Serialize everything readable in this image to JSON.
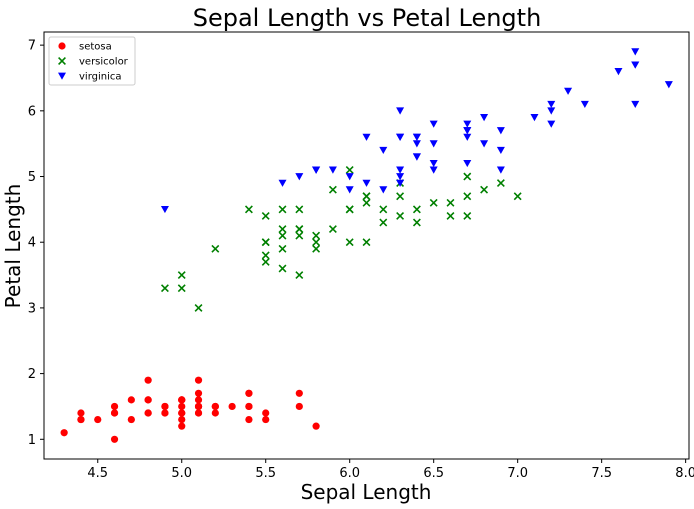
{
  "chart_data": {
    "type": "scatter",
    "title": "Sepal Length vs Petal Length",
    "xlabel": "Sepal Length",
    "ylabel": "Petal Length",
    "xlim": [
      4.18,
      8.02
    ],
    "ylim": [
      0.7,
      7.2
    ],
    "xticks": [
      4.5,
      5.0,
      5.5,
      6.0,
      6.5,
      7.0,
      7.5,
      8.0
    ],
    "xtick_labels": [
      "4.5",
      "5.0",
      "5.5",
      "6.0",
      "6.5",
      "7.0",
      "7.5",
      "8.0"
    ],
    "yticks": [
      1,
      2,
      3,
      4,
      5,
      6,
      7
    ],
    "ytick_labels": [
      "1",
      "2",
      "3",
      "4",
      "5",
      "6",
      "7"
    ],
    "grid": false,
    "legend_position": "top-left",
    "series": [
      {
        "name": "setosa",
        "marker": "circle",
        "color": "#ff0000",
        "points": [
          [
            5.1,
            1.4
          ],
          [
            4.9,
            1.4
          ],
          [
            4.7,
            1.3
          ],
          [
            4.6,
            1.5
          ],
          [
            5.0,
            1.4
          ],
          [
            5.4,
            1.7
          ],
          [
            4.6,
            1.4
          ],
          [
            5.0,
            1.5
          ],
          [
            4.4,
            1.4
          ],
          [
            4.9,
            1.5
          ],
          [
            5.4,
            1.5
          ],
          [
            4.8,
            1.6
          ],
          [
            4.8,
            1.4
          ],
          [
            4.3,
            1.1
          ],
          [
            5.8,
            1.2
          ],
          [
            5.7,
            1.5
          ],
          [
            5.4,
            1.3
          ],
          [
            5.1,
            1.4
          ],
          [
            5.7,
            1.7
          ],
          [
            5.1,
            1.5
          ],
          [
            5.4,
            1.7
          ],
          [
            5.1,
            1.5
          ],
          [
            4.6,
            1.0
          ],
          [
            5.1,
            1.7
          ],
          [
            4.8,
            1.9
          ],
          [
            5.0,
            1.6
          ],
          [
            5.0,
            1.6
          ],
          [
            5.2,
            1.5
          ],
          [
            5.2,
            1.4
          ],
          [
            4.7,
            1.6
          ],
          [
            4.8,
            1.6
          ],
          [
            5.4,
            1.5
          ],
          [
            5.2,
            1.5
          ],
          [
            5.5,
            1.4
          ],
          [
            4.9,
            1.5
          ],
          [
            5.0,
            1.2
          ],
          [
            5.5,
            1.3
          ],
          [
            4.9,
            1.4
          ],
          [
            4.4,
            1.3
          ],
          [
            5.1,
            1.5
          ],
          [
            5.0,
            1.3
          ],
          [
            4.5,
            1.3
          ],
          [
            4.4,
            1.3
          ],
          [
            5.0,
            1.6
          ],
          [
            5.1,
            1.9
          ],
          [
            4.8,
            1.4
          ],
          [
            5.1,
            1.6
          ],
          [
            4.6,
            1.4
          ],
          [
            5.3,
            1.5
          ],
          [
            5.0,
            1.4
          ]
        ]
      },
      {
        "name": "versicolor",
        "marker": "x",
        "color": "#008000",
        "points": [
          [
            7.0,
            4.7
          ],
          [
            6.4,
            4.5
          ],
          [
            6.9,
            4.9
          ],
          [
            5.5,
            4.0
          ],
          [
            6.5,
            4.6
          ],
          [
            5.7,
            4.5
          ],
          [
            6.3,
            4.7
          ],
          [
            4.9,
            3.3
          ],
          [
            6.6,
            4.6
          ],
          [
            5.2,
            3.9
          ],
          [
            5.0,
            3.5
          ],
          [
            5.9,
            4.2
          ],
          [
            6.0,
            4.0
          ],
          [
            6.1,
            4.7
          ],
          [
            5.6,
            3.6
          ],
          [
            6.7,
            4.4
          ],
          [
            5.6,
            4.5
          ],
          [
            5.8,
            4.1
          ],
          [
            6.2,
            4.5
          ],
          [
            5.6,
            3.9
          ],
          [
            5.9,
            4.8
          ],
          [
            6.1,
            4.0
          ],
          [
            6.3,
            4.9
          ],
          [
            6.1,
            4.7
          ],
          [
            6.4,
            4.3
          ],
          [
            6.6,
            4.4
          ],
          [
            6.8,
            4.8
          ],
          [
            6.7,
            5.0
          ],
          [
            6.0,
            4.5
          ],
          [
            5.7,
            3.5
          ],
          [
            5.5,
            3.8
          ],
          [
            5.5,
            3.7
          ],
          [
            5.8,
            3.9
          ],
          [
            6.0,
            5.1
          ],
          [
            5.4,
            4.5
          ],
          [
            6.0,
            4.5
          ],
          [
            6.7,
            4.7
          ],
          [
            6.3,
            4.4
          ],
          [
            5.6,
            4.1
          ],
          [
            5.5,
            4.0
          ],
          [
            5.5,
            4.4
          ],
          [
            6.1,
            4.6
          ],
          [
            5.8,
            4.0
          ],
          [
            5.0,
            3.3
          ],
          [
            5.6,
            4.2
          ],
          [
            5.7,
            4.2
          ],
          [
            5.7,
            4.2
          ],
          [
            6.2,
            4.3
          ],
          [
            5.1,
            3.0
          ],
          [
            5.7,
            4.1
          ]
        ]
      },
      {
        "name": "virginica",
        "marker": "triangle-down",
        "color": "#0000ff",
        "points": [
          [
            6.3,
            6.0
          ],
          [
            5.8,
            5.1
          ],
          [
            7.1,
            5.9
          ],
          [
            6.3,
            5.6
          ],
          [
            6.5,
            5.8
          ],
          [
            7.6,
            6.6
          ],
          [
            4.9,
            4.5
          ],
          [
            7.3,
            6.3
          ],
          [
            6.7,
            5.8
          ],
          [
            7.2,
            6.1
          ],
          [
            6.5,
            5.1
          ],
          [
            6.4,
            5.3
          ],
          [
            6.8,
            5.5
          ],
          [
            5.7,
            5.0
          ],
          [
            5.8,
            5.1
          ],
          [
            6.4,
            5.3
          ],
          [
            6.5,
            5.5
          ],
          [
            7.7,
            6.7
          ],
          [
            7.7,
            6.9
          ],
          [
            6.0,
            5.0
          ],
          [
            6.9,
            5.7
          ],
          [
            5.6,
            4.9
          ],
          [
            7.7,
            6.7
          ],
          [
            6.3,
            4.9
          ],
          [
            6.7,
            5.7
          ],
          [
            7.2,
            6.0
          ],
          [
            6.2,
            4.8
          ],
          [
            6.1,
            4.9
          ],
          [
            6.4,
            5.6
          ],
          [
            7.2,
            5.8
          ],
          [
            7.4,
            6.1
          ],
          [
            7.9,
            6.4
          ],
          [
            6.4,
            5.6
          ],
          [
            6.3,
            5.1
          ],
          [
            6.1,
            5.6
          ],
          [
            7.7,
            6.1
          ],
          [
            6.3,
            5.6
          ],
          [
            6.4,
            5.5
          ],
          [
            6.0,
            4.8
          ],
          [
            6.9,
            5.4
          ],
          [
            6.7,
            5.6
          ],
          [
            6.9,
            5.1
          ],
          [
            5.8,
            5.1
          ],
          [
            6.8,
            5.9
          ],
          [
            6.7,
            5.7
          ],
          [
            6.7,
            5.2
          ],
          [
            6.3,
            5.0
          ],
          [
            6.5,
            5.2
          ],
          [
            6.2,
            5.4
          ],
          [
            5.9,
            5.1
          ]
        ]
      }
    ]
  }
}
